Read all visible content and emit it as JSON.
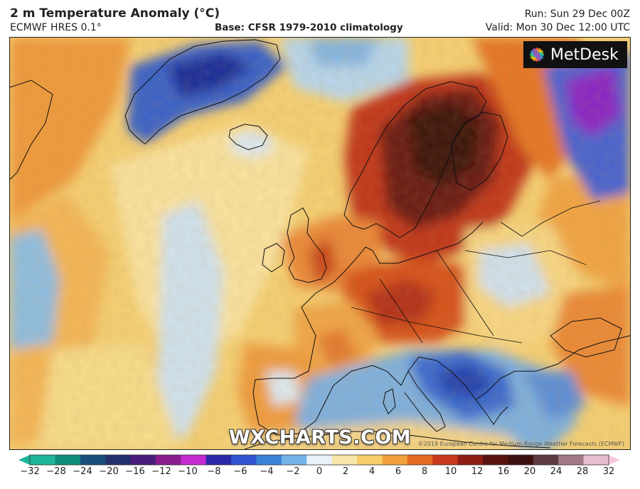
{
  "header": {
    "title": "2 m Temperature Anomaly (°C)",
    "model": "ECMWF HRES 0.1°",
    "base": "Base: CFSR 1979-2010 climatology",
    "run": "Run: Sun 29 Dec 00Z",
    "valid": "Valid: Mon 30 Dec 12:00 UTC"
  },
  "map": {
    "region": "Europe and North Atlantic",
    "logo": "MetDesk",
    "logo_icon": "metdesk-flower-icon",
    "watermark": "WXCHARTS.COM",
    "copyright": "©2019 European Centre for Medium-Range Weather Forecasts (ECMWF)"
  },
  "colorbar": {
    "ticks": [
      "−32",
      "−28",
      "−24",
      "−20",
      "−16",
      "−12",
      "−10",
      "−8",
      "−6",
      "−4",
      "−2",
      "0",
      "2",
      "4",
      "6",
      "8",
      "10",
      "12",
      "16",
      "20",
      "24",
      "28",
      "32"
    ],
    "colors": [
      "#1fb59a",
      "#0f8f7a",
      "#1a4f7a",
      "#23306b",
      "#4b1d7a",
      "#8a1c8e",
      "#c42ad0",
      "#2a2aa8",
      "#3155d0",
      "#3b82d6",
      "#74b3e8",
      "#e8f2f8",
      "#f7e7a8",
      "#f6cd6a",
      "#f2a03c",
      "#e46a24",
      "#c7391c",
      "#8e1d14",
      "#5a1410",
      "#3d1010",
      "#5b3a40",
      "#a07a85",
      "#e6bcd0"
    ],
    "extend_left_color": "#1fb59a",
    "extend_right_color": "#f5c8dc"
  }
}
